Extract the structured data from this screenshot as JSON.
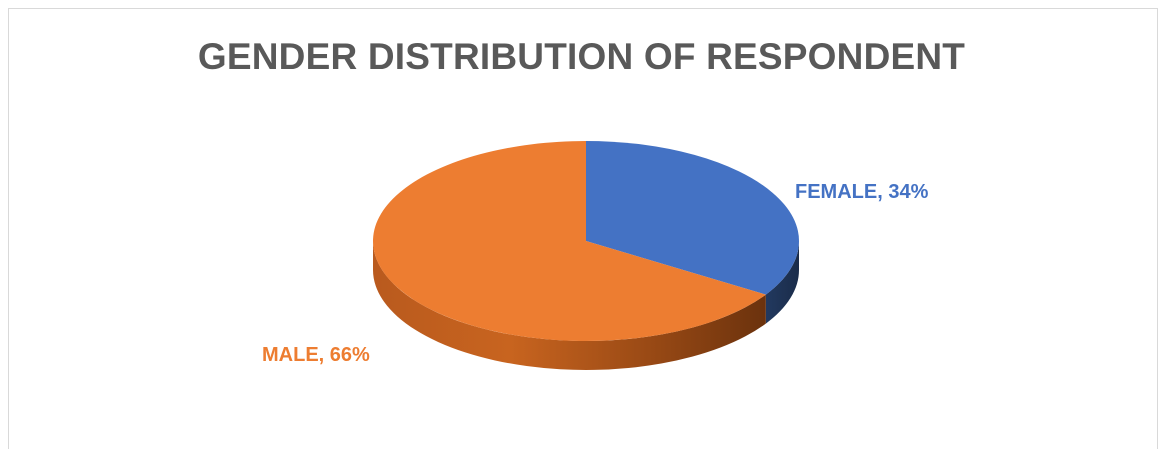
{
  "chart_data": {
    "type": "pie",
    "title": "GENDER DISTRIBUTION OF RESPONDENT",
    "three_d": true,
    "slices": [
      {
        "label": "FEMALE",
        "value": 34,
        "value_label": "34%",
        "color": "#4472C4",
        "side_color": "#1F3864",
        "label_color": "#4472C4"
      },
      {
        "label": "MALE",
        "value": 66,
        "value_label": "66%",
        "color": "#ED7D31",
        "side_color": "#8B4513",
        "label_color": "#ED7D31"
      }
    ]
  }
}
